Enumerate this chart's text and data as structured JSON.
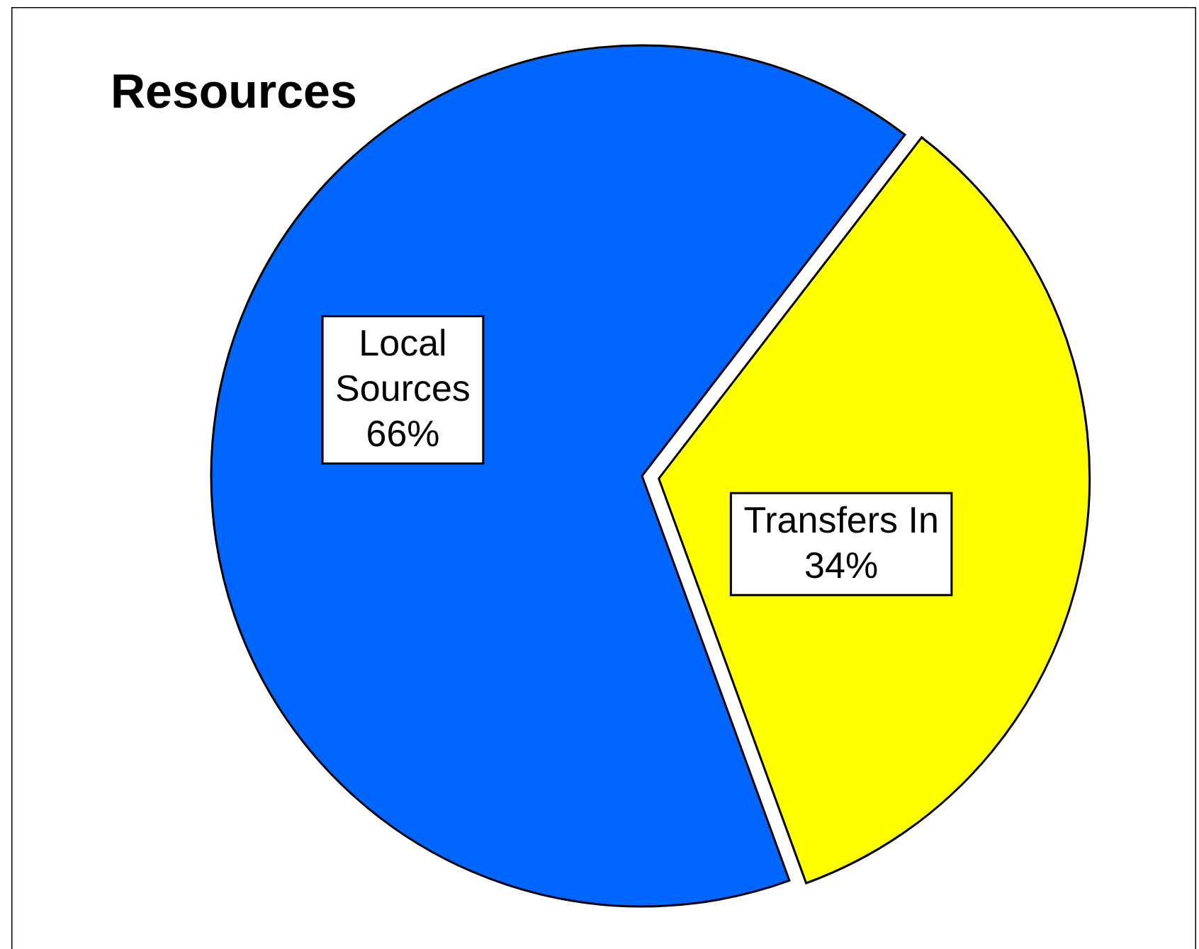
{
  "chart_data": {
    "type": "pie",
    "title": "Resources",
    "categories": [
      "Local Sources",
      "Transfers In"
    ],
    "values": [
      66,
      34
    ],
    "colors": [
      "#0066ff",
      "#ffff00"
    ],
    "value_labels": [
      "66%",
      "34%"
    ]
  }
}
